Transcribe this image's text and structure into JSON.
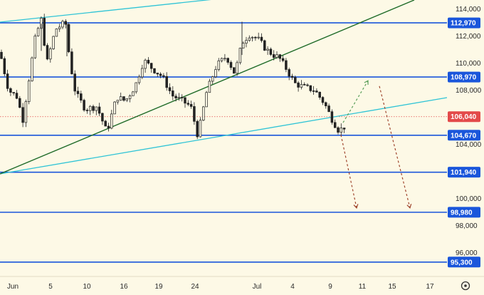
{
  "chart_data": {
    "type": "candlestick",
    "title": "",
    "background": "#fdf9e6",
    "x_axis": {
      "tick_labels": [
        "Jun",
        "5",
        "10",
        "16",
        "19",
        "24",
        "Jul",
        "4",
        "9",
        "11",
        "15",
        "17"
      ]
    },
    "y_axis": {
      "range": [
        94800,
        114600
      ],
      "tick_labels": [
        {
          "value": 114000,
          "label": "114,000"
        },
        {
          "value": 112000,
          "label": "112,000"
        },
        {
          "value": 110000,
          "label": "110,000"
        },
        {
          "value": 108000,
          "label": "108,000"
        },
        {
          "value": 104000,
          "label": "104,000"
        },
        {
          "value": 100000,
          "label": "100,000"
        },
        {
          "value": 98000,
          "label": "98,000"
        },
        {
          "value": 96000,
          "label": "96,000"
        }
      ]
    },
    "price_badges": [
      {
        "value": 112970,
        "label": "112,970",
        "color": "#1a56db"
      },
      {
        "value": 108970,
        "label": "108,970",
        "color": "#1a56db"
      },
      {
        "value": 106040,
        "label": "106,040",
        "color": "#e34a4a"
      },
      {
        "value": 104670,
        "label": "104,670",
        "color": "#1a56db"
      },
      {
        "value": 101940,
        "label": "101,940",
        "color": "#1a56db"
      },
      {
        "value": 98980,
        "label": "98,980",
        "color": "#1a56db"
      },
      {
        "value": 95300,
        "label": "95,300",
        "color": "#1a56db"
      }
    ],
    "horizontal_levels": [
      112970,
      108970,
      104670,
      101940,
      98980,
      95300
    ],
    "current_price": 106040,
    "colors": {
      "level_line": "#1a56db",
      "trend_dark": "#1e6b28",
      "trend_cyan": "#2fc4d6",
      "candle": "#222222",
      "projection_up": "#5a9e5a",
      "projection_down": "#a0462e",
      "current_price": "#e34a4a"
    },
    "settings_icon": "gear-icon"
  }
}
